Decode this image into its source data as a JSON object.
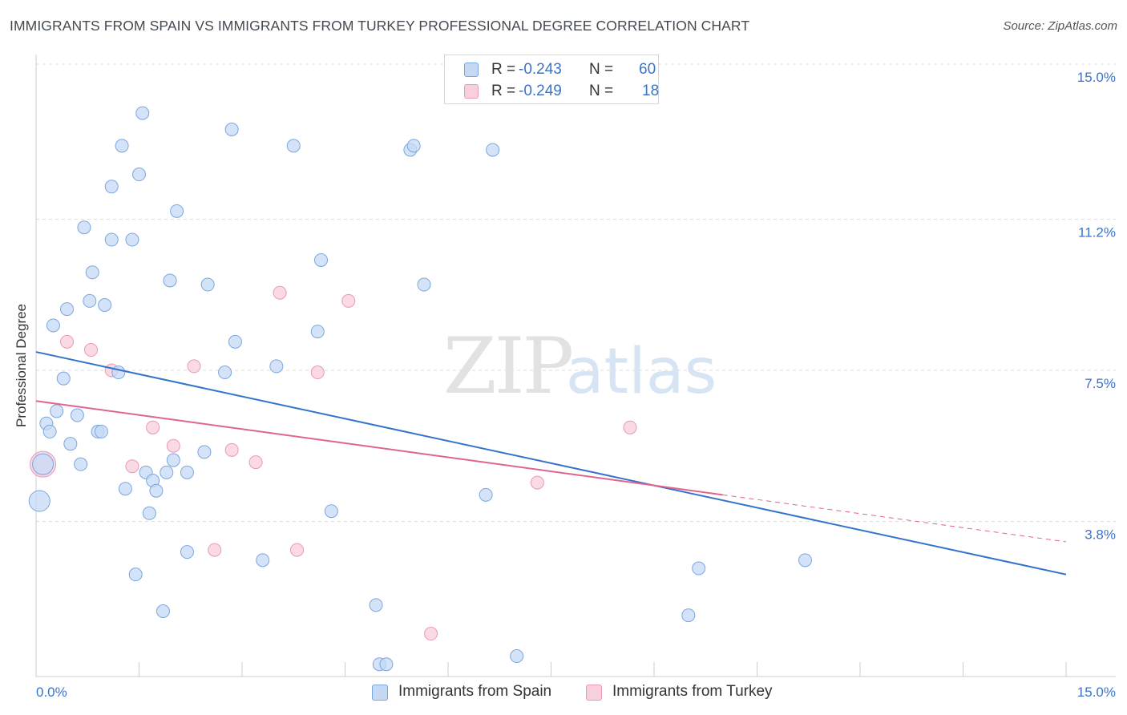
{
  "title": "IMMIGRANTS FROM SPAIN VS IMMIGRANTS FROM TURKEY PROFESSIONAL DEGREE CORRELATION CHART",
  "source": "Source: ZipAtlas.com",
  "watermark": {
    "zip": "ZIP",
    "atlas": "atlas"
  },
  "legend": {
    "spain": {
      "r_label": "R =",
      "r_value": "-0.243",
      "n_label": "N =",
      "n_value": "60"
    },
    "turkey": {
      "r_label": "R =",
      "r_value": "-0.249",
      "n_label": "N =",
      "n_value": "18"
    }
  },
  "colors": {
    "spain_fill": "#c5d9f5",
    "spain_stroke": "#7aa6de",
    "spain_line": "#3373cc",
    "turkey_fill": "#f8cfdc",
    "turkey_stroke": "#e899b3",
    "turkey_line": "#e0648e",
    "grid": "#dddddd",
    "axis_label": "#3b73c9"
  },
  "chart_data": {
    "type": "scatter",
    "title": "IMMIGRANTS FROM SPAIN VS IMMIGRANTS FROM TURKEY PROFESSIONAL DEGREE CORRELATION CHART",
    "xlabel": "",
    "ylabel": "Professional Degree",
    "xlim": [
      0,
      15
    ],
    "ylim": [
      0,
      15
    ],
    "x_tick_labels": {
      "left": "0.0%",
      "right": "15.0%"
    },
    "y_ticks": [
      3.8,
      7.5,
      11.2,
      15.0
    ],
    "y_tick_labels": [
      "3.8%",
      "7.5%",
      "11.2%",
      "15.0%"
    ],
    "series": [
      {
        "name": "Immigrants from Spain",
        "r": -0.243,
        "n": 60,
        "trend": {
          "x0": 0,
          "y0": 7.95,
          "x1": 15,
          "y1": 2.5
        },
        "points": [
          {
            "x": 0.1,
            "y": 5.2,
            "big": true
          },
          {
            "x": 0.05,
            "y": 4.3,
            "big": true
          },
          {
            "x": 0.15,
            "y": 6.2
          },
          {
            "x": 0.2,
            "y": 6.0
          },
          {
            "x": 0.25,
            "y": 8.6
          },
          {
            "x": 0.3,
            "y": 6.5
          },
          {
            "x": 0.4,
            "y": 7.3
          },
          {
            "x": 0.45,
            "y": 9.0
          },
          {
            "x": 0.5,
            "y": 5.7
          },
          {
            "x": 0.6,
            "y": 6.4
          },
          {
            "x": 0.65,
            "y": 5.2
          },
          {
            "x": 0.7,
            "y": 11.0
          },
          {
            "x": 0.78,
            "y": 9.2
          },
          {
            "x": 0.82,
            "y": 9.9
          },
          {
            "x": 0.9,
            "y": 6.0
          },
          {
            "x": 0.95,
            "y": 6.0
          },
          {
            "x": 1.0,
            "y": 9.1
          },
          {
            "x": 1.1,
            "y": 10.7
          },
          {
            "x": 1.1,
            "y": 12.0
          },
          {
            "x": 1.2,
            "y": 7.45
          },
          {
            "x": 1.25,
            "y": 13.0
          },
          {
            "x": 1.3,
            "y": 4.6
          },
          {
            "x": 1.4,
            "y": 10.7
          },
          {
            "x": 1.45,
            "y": 2.5
          },
          {
            "x": 1.5,
            "y": 12.3
          },
          {
            "x": 1.55,
            "y": 13.8
          },
          {
            "x": 1.6,
            "y": 5.0
          },
          {
            "x": 1.65,
            "y": 4.0
          },
          {
            "x": 1.7,
            "y": 4.8
          },
          {
            "x": 1.75,
            "y": 4.55
          },
          {
            "x": 1.85,
            "y": 1.6
          },
          {
            "x": 1.9,
            "y": 5.0
          },
          {
            "x": 1.95,
            "y": 9.7
          },
          {
            "x": 2.0,
            "y": 5.3
          },
          {
            "x": 2.05,
            "y": 11.4
          },
          {
            "x": 2.2,
            "y": 3.05
          },
          {
            "x": 2.2,
            "y": 5.0
          },
          {
            "x": 2.45,
            "y": 5.5
          },
          {
            "x": 2.5,
            "y": 9.6
          },
          {
            "x": 2.75,
            "y": 7.45
          },
          {
            "x": 2.85,
            "y": 13.4
          },
          {
            "x": 2.9,
            "y": 8.2
          },
          {
            "x": 3.3,
            "y": 2.85
          },
          {
            "x": 3.5,
            "y": 7.6
          },
          {
            "x": 3.75,
            "y": 13.0
          },
          {
            "x": 4.1,
            "y": 8.45
          },
          {
            "x": 4.15,
            "y": 10.2
          },
          {
            "x": 4.3,
            "y": 4.05
          },
          {
            "x": 4.95,
            "y": 1.75
          },
          {
            "x": 5.0,
            "y": 0.3
          },
          {
            "x": 5.1,
            "y": 0.3
          },
          {
            "x": 5.45,
            "y": 12.9
          },
          {
            "x": 5.5,
            "y": 13.0
          },
          {
            "x": 5.65,
            "y": 9.6
          },
          {
            "x": 6.55,
            "y": 4.45
          },
          {
            "x": 6.65,
            "y": 12.9
          },
          {
            "x": 7.0,
            "y": 0.5
          },
          {
            "x": 9.5,
            "y": 1.5
          },
          {
            "x": 9.65,
            "y": 2.65
          },
          {
            "x": 11.2,
            "y": 2.85
          }
        ]
      },
      {
        "name": "Immigrants from Turkey",
        "r": -0.249,
        "n": 18,
        "trend": {
          "x0": 0,
          "y0": 6.75,
          "x1": 10,
          "y1": 4.45,
          "dash_to": {
            "x": 15,
            "y": 3.3
          }
        },
        "points": [
          {
            "x": 0.1,
            "y": 5.2,
            "big": true
          },
          {
            "x": 0.45,
            "y": 8.2
          },
          {
            "x": 0.8,
            "y": 8.0
          },
          {
            "x": 1.1,
            "y": 7.5
          },
          {
            "x": 1.4,
            "y": 5.15
          },
          {
            "x": 1.7,
            "y": 6.1
          },
          {
            "x": 2.0,
            "y": 5.65
          },
          {
            "x": 2.3,
            "y": 7.6
          },
          {
            "x": 2.6,
            "y": 3.1
          },
          {
            "x": 2.85,
            "y": 5.55
          },
          {
            "x": 3.2,
            "y": 5.25
          },
          {
            "x": 3.55,
            "y": 9.4
          },
          {
            "x": 3.8,
            "y": 3.1
          },
          {
            "x": 4.1,
            "y": 7.45
          },
          {
            "x": 4.55,
            "y": 9.2
          },
          {
            "x": 5.75,
            "y": 1.05
          },
          {
            "x": 7.3,
            "y": 4.75
          },
          {
            "x": 8.65,
            "y": 6.1
          }
        ]
      }
    ]
  }
}
